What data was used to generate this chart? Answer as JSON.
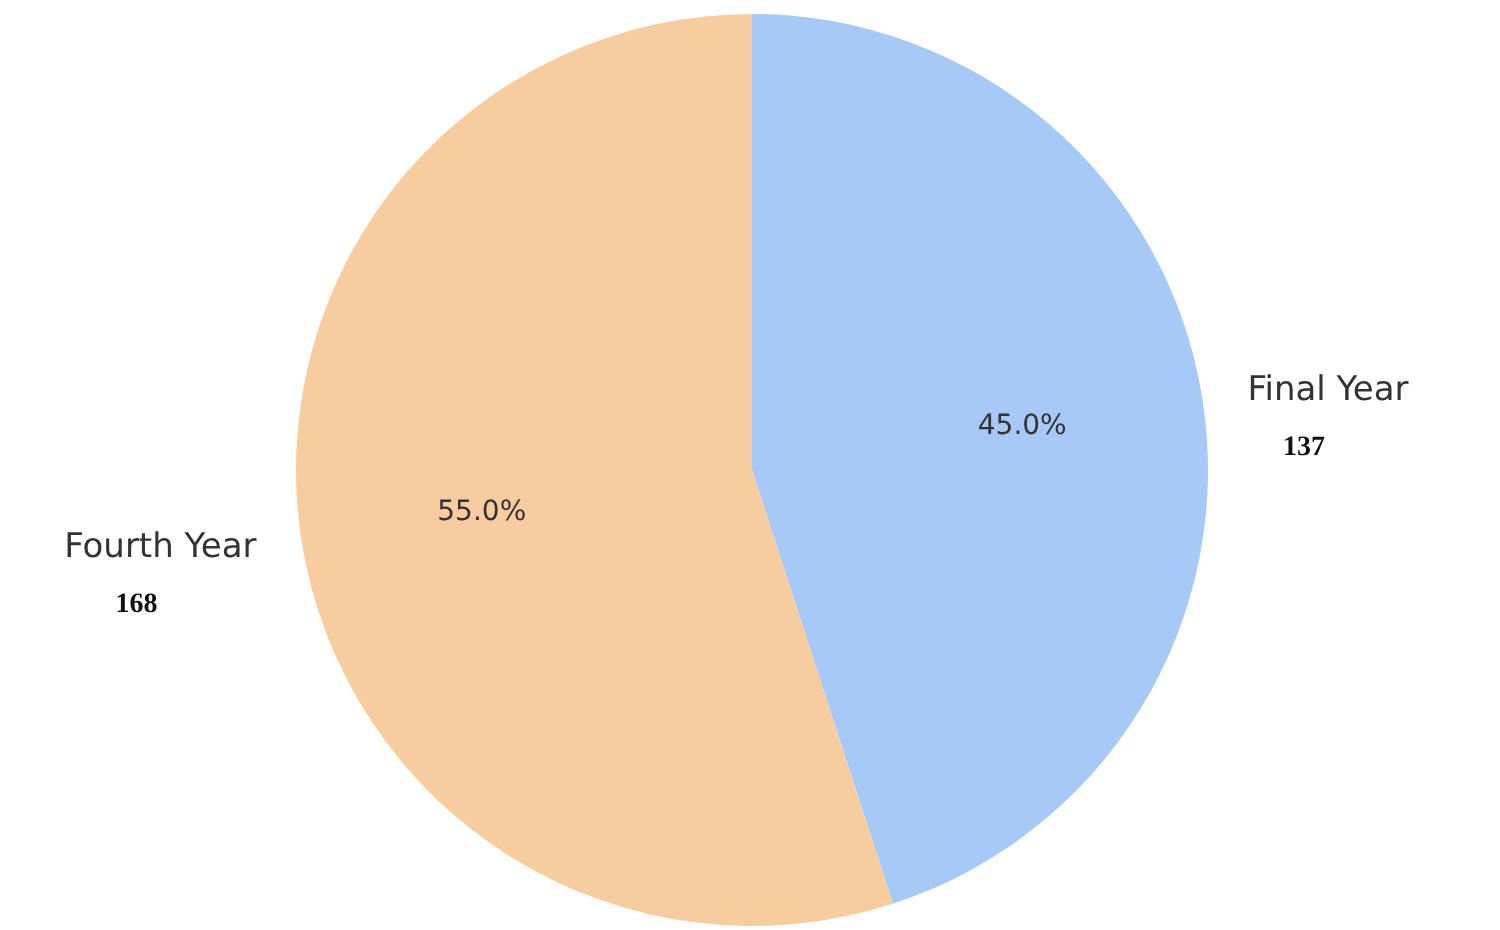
{
  "chart_data": {
    "type": "pie",
    "categories": [
      "Final Year",
      "Fourth Year"
    ],
    "values": [
      45,
      55
    ],
    "colors": [
      "#a7c9f7",
      "#f7cda0"
    ],
    "value_labels": [
      "45.0%",
      "55.0%"
    ],
    "annotations": [
      "137",
      "168"
    ],
    "legend": false
  }
}
